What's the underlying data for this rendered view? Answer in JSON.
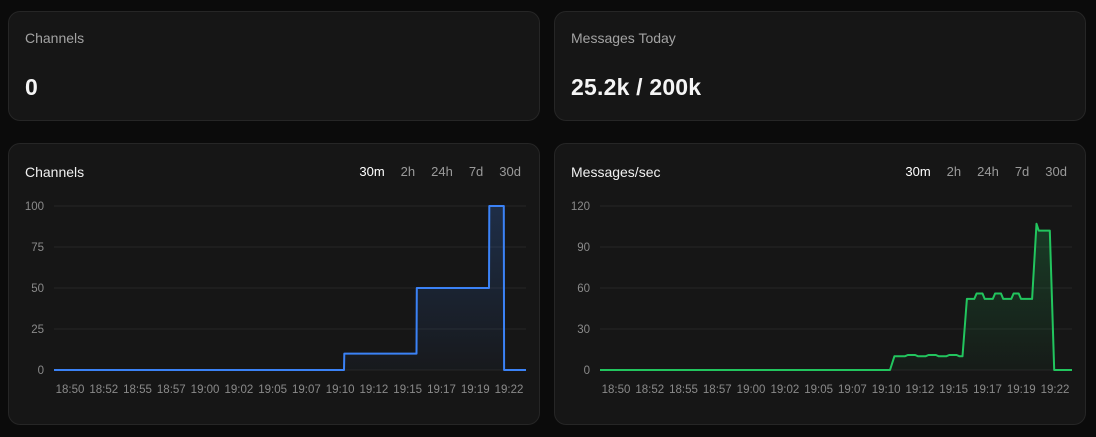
{
  "stats": [
    {
      "label": "Channels",
      "value": "0"
    },
    {
      "label": "Messages Today",
      "value": "25.2k / 200k"
    }
  ],
  "ranges": [
    "30m",
    "2h",
    "24h",
    "7d",
    "30d"
  ],
  "active_range": "30m",
  "colors": {
    "channels": "#3b82f6",
    "messages": "#22c55e"
  },
  "chart_data": [
    {
      "type": "area",
      "title": "Channels",
      "xlabel": "",
      "ylabel": "",
      "ylim": [
        0,
        100
      ],
      "yticks": [
        0,
        25,
        50,
        75,
        100
      ],
      "xticks": [
        "18:50",
        "18:52",
        "18:55",
        "18:57",
        "19:00",
        "19:02",
        "19:05",
        "19:07",
        "19:10",
        "19:12",
        "19:15",
        "19:17",
        "19:19",
        "19:22"
      ],
      "grid": true,
      "series": [
        {
          "color": "#3b82f6",
          "x": [
            0,
            19.6,
            19.62,
            24.5,
            24.52,
            29.4,
            29.42,
            30.4,
            30.42,
            31.9
          ],
          "y": [
            0,
            0,
            10,
            10,
            50,
            50,
            100,
            100,
            0,
            0
          ]
        }
      ]
    },
    {
      "type": "area",
      "title": "Messages/sec",
      "xlabel": "",
      "ylabel": "",
      "ylim": [
        0,
        120
      ],
      "yticks": [
        0,
        30,
        60,
        90,
        120
      ],
      "xticks": [
        "18:50",
        "18:52",
        "18:55",
        "18:57",
        "19:00",
        "19:02",
        "19:05",
        "19:07",
        "19:10",
        "19:12",
        "19:15",
        "19:17",
        "19:19",
        "19:22"
      ],
      "grid": true,
      "series": [
        {
          "color": "#22c55e",
          "x": [
            0,
            19.6,
            19.9,
            20.6,
            20.8,
            21.3,
            21.5,
            22.0,
            22.2,
            22.7,
            22.9,
            23.4,
            23.6,
            24.1,
            24.3,
            24.5,
            24.8,
            25.3,
            25.45,
            25.85,
            26.0,
            26.55,
            26.7,
            27.1,
            27.25,
            27.8,
            27.95,
            28.3,
            28.45,
            29.2,
            29.5,
            29.65,
            30.4,
            30.7,
            31.9
          ],
          "y": [
            0,
            0,
            10,
            10,
            11,
            11,
            10,
            10,
            11,
            11,
            10,
            10,
            11,
            11,
            10,
            10,
            52,
            52,
            56,
            56,
            52,
            52,
            56,
            56,
            52,
            52,
            56,
            56,
            52,
            52,
            107,
            102,
            102,
            0,
            0
          ]
        }
      ]
    }
  ]
}
